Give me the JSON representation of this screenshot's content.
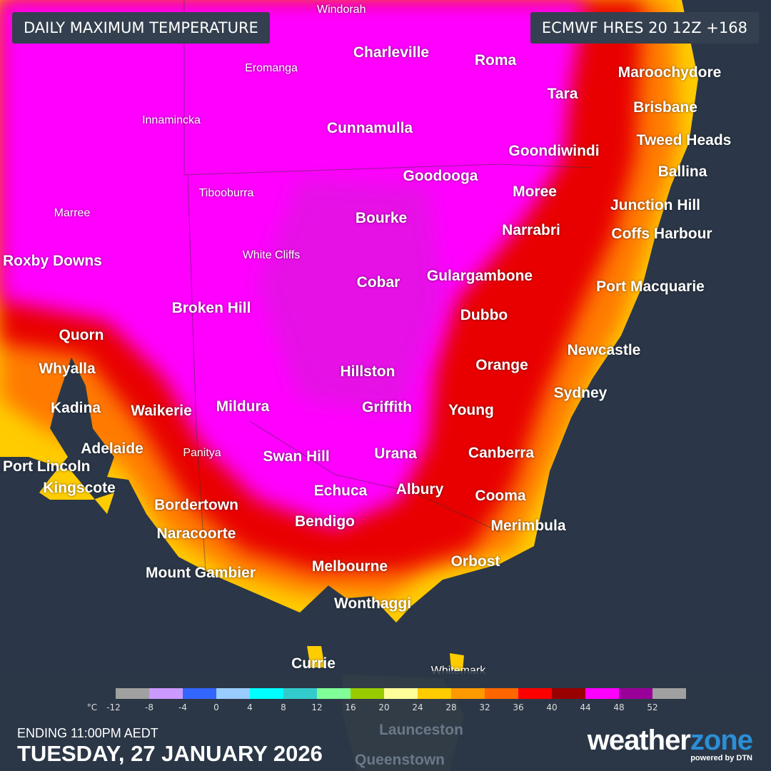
{
  "header": {
    "title": "DAILY MAXIMUM TEMPERATURE",
    "model": "ECMWF HRES 20 12Z +168"
  },
  "cities": [
    "Windorah",
    "Charleville",
    "Eromanga",
    "Roma",
    "Maroochydore",
    "Tara",
    "Brisbane",
    "Innamincka",
    "Cunnamulla",
    "Tweed Heads",
    "Goondiwindi",
    "Ballina",
    "Goodooga",
    "Moree",
    "Tibooburra",
    "Junction Hill",
    "Marree",
    "Bourke",
    "Narrabri",
    "Coffs Harbour",
    "White Cliffs",
    "Roxby Downs",
    "Cobar",
    "Gulargambone",
    "Port Macquarie",
    "Broken Hill",
    "Dubbo",
    "Quorn",
    "Newcastle",
    "Whyalla",
    "Hillston",
    "Orange",
    "Sydney",
    "Kadina",
    "Waikerie",
    "Mildura",
    "Griffith",
    "Young",
    "Port Lincoln",
    "Adelaide",
    "Panitya",
    "Swan Hill",
    "Urana",
    "Canberra",
    "Kingscote",
    "Echuca",
    "Albury",
    "Cooma",
    "Bordertown",
    "Bendigo",
    "Merimbula",
    "Naracoorte",
    "Orbost",
    "Melbourne",
    "Mount Gambier",
    "Wonthaggi",
    "Currie",
    "Whitemark",
    "Launceston",
    "Queenstown"
  ],
  "legend": {
    "unit": "°C",
    "ticks": [
      "-12",
      "-8",
      "-4",
      "0",
      "4",
      "8",
      "12",
      "16",
      "20",
      "24",
      "28",
      "32",
      "36",
      "40",
      "44",
      "48",
      "52"
    ],
    "colors": [
      "#a0a0a0",
      "#cc99ff",
      "#3366ff",
      "#99ccff",
      "#00ffff",
      "#33cccc",
      "#80ff99",
      "#99cc00",
      "#ffff99",
      "#ffcc00",
      "#ff9900",
      "#ff6600",
      "#ff0000",
      "#990000",
      "#ff00ff",
      "#990099",
      "#a0a0a0"
    ]
  },
  "footer": {
    "ending": "ENDING 11:00PM AEDT",
    "date": "TUESDAY, 27 JANUARY 2026"
  },
  "logo": {
    "brand_a": "weather",
    "brand_b": "zone",
    "tagline": "powered by DTN"
  }
}
